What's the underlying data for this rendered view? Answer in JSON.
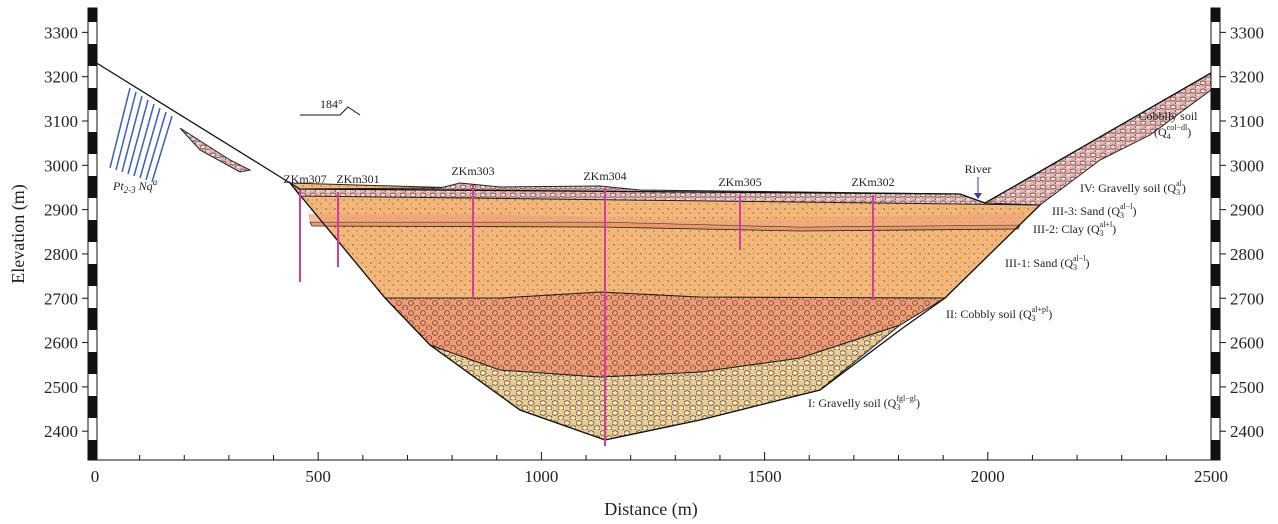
{
  "axes": {
    "xlim": [
      -10,
      2500
    ],
    "ylim": [
      2335,
      3355
    ],
    "xticks": [
      0,
      500,
      1000,
      1500,
      2000,
      2500
    ],
    "yticks": [
      2400,
      2500,
      2600,
      2700,
      2800,
      2900,
      3000,
      3100,
      3200,
      3300
    ],
    "xlabel": "Distance (m)",
    "ylabel": "Elevation (m)"
  },
  "boreholes": [
    "ZKm307",
    "ZKm301",
    "ZKm303",
    "ZKm304",
    "ZKm305",
    "ZKm302"
  ],
  "river": "River",
  "direction": "184°",
  "formation": {
    "main": "Pt",
    "sub": "2-3",
    "mid": " Nq",
    "sup": "a"
  },
  "layers": [
    {
      "main": "Cobblly soil",
      "line2": "(Q",
      "sub": "4",
      "sup": "col−dl",
      "end": ")"
    },
    {
      "main": "IV: Gravelly soil (Q",
      "sub": "3",
      "sup": "al",
      "end": ")"
    },
    {
      "main": "III-3: Sand (Q",
      "sub": "3",
      "sup": "al−l",
      "end": ")"
    },
    {
      "main": "III-2: Clay (Q",
      "sub": "3",
      "sup": "al+l",
      "end": ")"
    },
    {
      "main": "III-1: Sand (Q",
      "sub": "3",
      "sup": "al−l",
      "end": ")"
    },
    {
      "main": "II: Cobbly soil (Q",
      "sub": "3",
      "sup": "al+pl",
      "end": ")"
    },
    {
      "main": "I: Gravelly soil (Q",
      "sub": "3",
      "sup": "fgl−gl",
      "end": ")"
    }
  ]
}
